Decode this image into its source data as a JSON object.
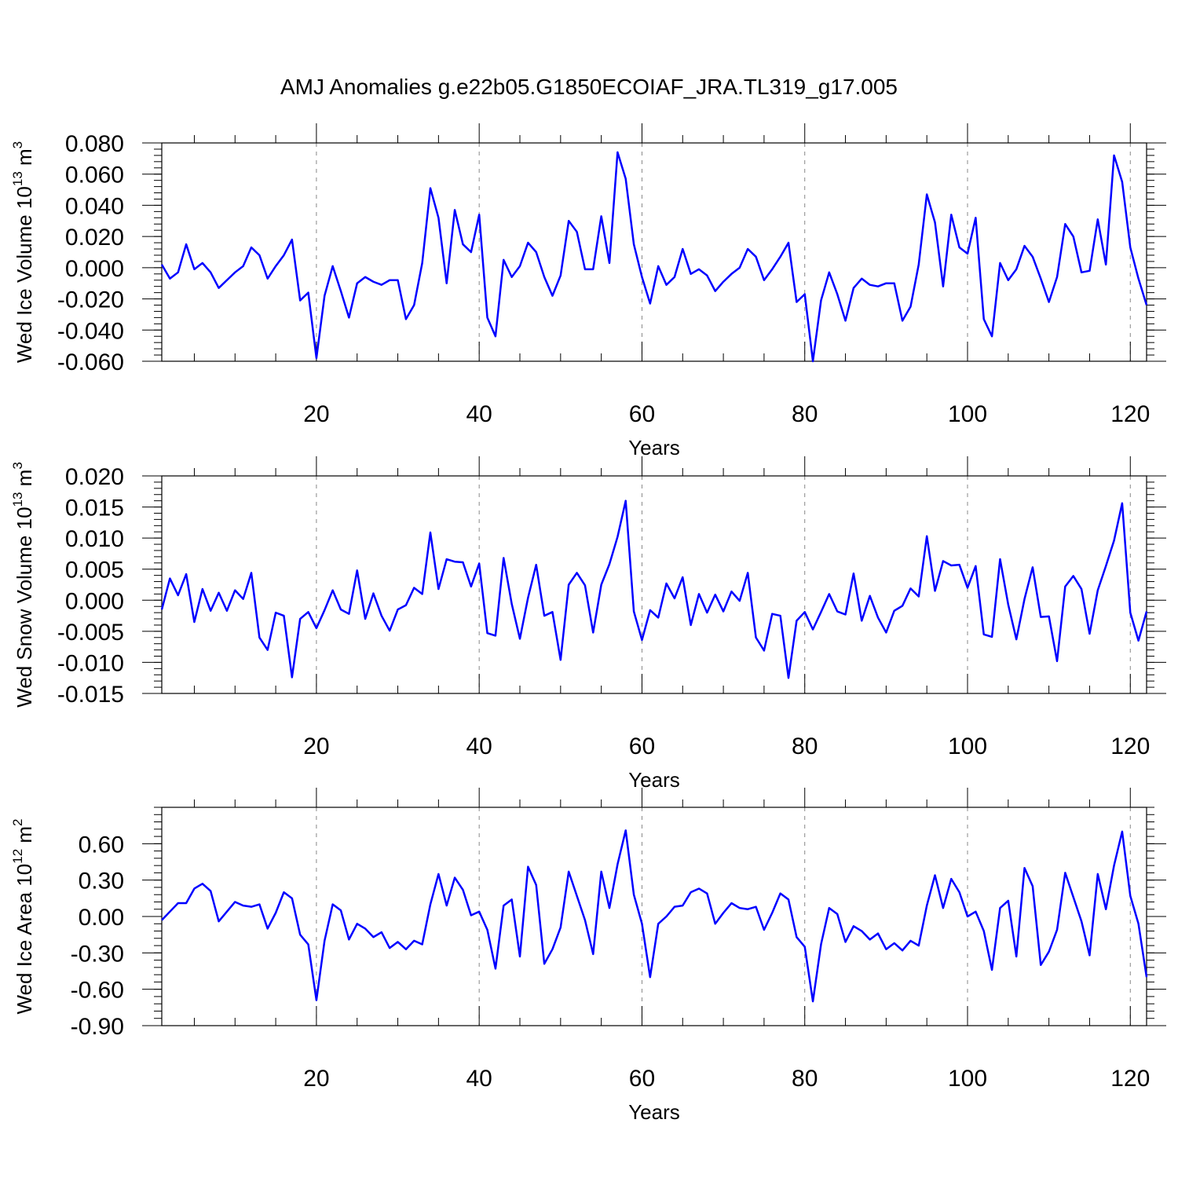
{
  "title": "AMJ Anomalies g.e22b05.G1850ECOIAF_JRA.TL319_g17.005",
  "colors": {
    "series": "#0000ff",
    "axis": "#000000",
    "grid": "#888888"
  },
  "chart_data": [
    {
      "type": "line",
      "title": "",
      "xlabel": "Years",
      "ylabel": "Wed Ice Volume 10",
      "ylabel_exp": "13",
      "ylabel_unit": " m",
      "ylabel_unit_exp": "3",
      "xlim": [
        1,
        122
      ],
      "ylim": [
        -0.06,
        0.08
      ],
      "yticks": [
        "0.080",
        "0.060",
        "0.040",
        "0.020",
        "0.000",
        "-0.020",
        "-0.040",
        "-0.060"
      ],
      "ytick_values": [
        0.08,
        0.06,
        0.04,
        0.02,
        0.0,
        -0.02,
        -0.04,
        -0.06
      ],
      "xticks": [
        "20",
        "40",
        "60",
        "80",
        "100",
        "120"
      ],
      "xtick_values": [
        20,
        40,
        60,
        80,
        100,
        120
      ],
      "grid": "vertical dashed",
      "x_start": 1,
      "values": [
        0.002,
        -0.007,
        -0.003,
        0.015,
        -0.001,
        0.003,
        -0.003,
        -0.013,
        -0.008,
        -0.003,
        0.001,
        0.013,
        0.008,
        -0.007,
        0.001,
        0.008,
        0.018,
        -0.021,
        -0.016,
        -0.058,
        -0.018,
        0.001,
        -0.015,
        -0.032,
        -0.01,
        -0.006,
        -0.009,
        -0.011,
        -0.008,
        -0.008,
        -0.033,
        -0.024,
        0.003,
        0.051,
        0.032,
        -0.01,
        0.037,
        0.015,
        0.01,
        0.034,
        -0.032,
        -0.044,
        0.005,
        -0.006,
        0.001,
        0.016,
        0.01,
        -0.006,
        -0.018,
        -0.005,
        0.03,
        0.023,
        -0.001,
        -0.001,
        0.033,
        0.003,
        0.074,
        0.057,
        0.015,
        -0.006,
        -0.023,
        0.001,
        -0.011,
        -0.006,
        0.012,
        -0.004,
        -0.001,
        -0.005,
        -0.015,
        -0.009,
        -0.004,
        0.0,
        0.012,
        0.007,
        -0.008,
        -0.001,
        0.007,
        0.016,
        -0.022,
        -0.017,
        -0.06,
        -0.021,
        -0.003,
        -0.017,
        -0.034,
        -0.013,
        -0.007,
        -0.011,
        -0.012,
        -0.01,
        -0.01,
        -0.034,
        -0.025,
        0.002,
        0.047,
        0.029,
        -0.012,
        0.034,
        0.013,
        0.009,
        0.032,
        -0.033,
        -0.044,
        0.003,
        -0.008,
        -0.001,
        0.014,
        0.007,
        -0.007,
        -0.022,
        -0.006,
        0.028,
        0.02,
        -0.003,
        -0.002,
        0.031,
        0.002,
        0.072,
        0.055,
        0.013,
        -0.007,
        -0.024
      ]
    },
    {
      "type": "line",
      "title": "",
      "xlabel": "Years",
      "ylabel": "Wed Snow Volume 10",
      "ylabel_exp": "13",
      "ylabel_unit": " m",
      "ylabel_unit_exp": "3",
      "xlim": [
        1,
        122
      ],
      "ylim": [
        -0.015,
        0.02
      ],
      "yticks": [
        "0.020",
        "0.015",
        "0.010",
        "0.005",
        "0.000",
        "-0.005",
        "-0.010",
        "-0.015"
      ],
      "ytick_values": [
        0.02,
        0.015,
        0.01,
        0.005,
        0.0,
        -0.005,
        -0.01,
        -0.015
      ],
      "xticks": [
        "20",
        "40",
        "60",
        "80",
        "100",
        "120"
      ],
      "xtick_values": [
        20,
        40,
        60,
        80,
        100,
        120
      ],
      "grid": "vertical dashed",
      "x_start": 1,
      "values": [
        -0.0015,
        0.0035,
        0.0008,
        0.0042,
        -0.0035,
        0.0018,
        -0.0017,
        0.0012,
        -0.0017,
        0.0016,
        0.0002,
        0.0044,
        -0.006,
        -0.008,
        -0.002,
        -0.0025,
        -0.0124,
        -0.003,
        -0.0019,
        -0.0045,
        -0.0016,
        0.0016,
        -0.0015,
        -0.0022,
        0.0048,
        -0.003,
        0.0011,
        -0.0025,
        -0.0049,
        -0.0015,
        -0.0008,
        0.002,
        0.001,
        0.0109,
        0.0018,
        0.0066,
        0.0062,
        0.0061,
        0.0022,
        0.0059,
        -0.0053,
        -0.0057,
        0.0068,
        -0.0006,
        -0.0062,
        0.0004,
        0.0057,
        -0.0025,
        -0.0019,
        -0.0096,
        0.0025,
        0.0044,
        0.0024,
        -0.0052,
        0.0025,
        0.0058,
        0.0102,
        0.016,
        -0.0018,
        -0.0064,
        -0.0016,
        -0.0028,
        0.0027,
        0.0003,
        0.0037,
        -0.004,
        0.001,
        -0.002,
        0.0009,
        -0.0018,
        0.0014,
        -0.0001,
        0.0044,
        -0.006,
        -0.0081,
        -0.0022,
        -0.0025,
        -0.0125,
        -0.0033,
        -0.0019,
        -0.0047,
        -0.0019,
        0.001,
        -0.0018,
        -0.0023,
        0.0043,
        -0.0033,
        0.0007,
        -0.0028,
        -0.0052,
        -0.0017,
        -0.0009,
        0.0019,
        0.0006,
        0.0103,
        0.0015,
        0.0063,
        0.0056,
        0.0057,
        0.002,
        0.0055,
        -0.0055,
        -0.0059,
        0.0066,
        -0.0007,
        -0.0063,
        0.0002,
        0.0053,
        -0.0027,
        -0.0026,
        -0.0098,
        0.0022,
        0.0039,
        0.0018,
        -0.0054,
        0.0016,
        0.0055,
        0.0096,
        0.0156,
        -0.002,
        -0.0065,
        -0.0018
      ]
    },
    {
      "type": "line",
      "title": "",
      "xlabel": "Years",
      "ylabel": "Wed Ice Area 10",
      "ylabel_exp": "12",
      "ylabel_unit": " m",
      "ylabel_unit_exp": "2",
      "xlim": [
        1,
        122
      ],
      "ylim": [
        -0.9,
        0.9
      ],
      "yticks": [
        "0.60",
        "0.30",
        "0.00",
        "-0.30",
        "-0.60",
        "-0.90"
      ],
      "ytick_values": [
        0.6,
        0.3,
        0.0,
        -0.3,
        -0.6,
        -0.9
      ],
      "xticks": [
        "20",
        "40",
        "60",
        "80",
        "100",
        "120"
      ],
      "xtick_values": [
        20,
        40,
        60,
        80,
        100,
        120
      ],
      "grid": "vertical dashed",
      "x_start": 1,
      "values": [
        -0.03,
        0.04,
        0.11,
        0.11,
        0.23,
        0.27,
        0.21,
        -0.04,
        0.04,
        0.12,
        0.09,
        0.08,
        0.1,
        -0.1,
        0.03,
        0.2,
        0.15,
        -0.15,
        -0.23,
        -0.69,
        -0.2,
        0.1,
        0.05,
        -0.19,
        -0.06,
        -0.1,
        -0.17,
        -0.13,
        -0.26,
        -0.21,
        -0.27,
        -0.2,
        -0.23,
        0.1,
        0.35,
        0.09,
        0.32,
        0.22,
        0.01,
        0.04,
        -0.11,
        -0.43,
        0.09,
        0.14,
        -0.33,
        0.41,
        0.26,
        -0.39,
        -0.27,
        -0.09,
        0.37,
        0.17,
        -0.03,
        -0.31,
        0.37,
        0.07,
        0.43,
        0.71,
        0.18,
        -0.06,
        -0.5,
        -0.06,
        0.0,
        0.08,
        0.09,
        0.2,
        0.23,
        0.19,
        -0.06,
        0.03,
        0.11,
        0.07,
        0.06,
        0.08,
        -0.11,
        0.03,
        0.19,
        0.14,
        -0.17,
        -0.25,
        -0.7,
        -0.23,
        0.07,
        0.02,
        -0.21,
        -0.08,
        -0.12,
        -0.19,
        -0.14,
        -0.27,
        -0.22,
        -0.28,
        -0.2,
        -0.24,
        0.09,
        0.34,
        0.07,
        0.31,
        0.2,
        0.0,
        0.04,
        -0.12,
        -0.44,
        0.07,
        0.13,
        -0.33,
        0.4,
        0.25,
        -0.4,
        -0.29,
        -0.11,
        0.36,
        0.16,
        -0.04,
        -0.32,
        0.35,
        0.06,
        0.42,
        0.7,
        0.17,
        -0.06,
        -0.5
      ]
    }
  ]
}
